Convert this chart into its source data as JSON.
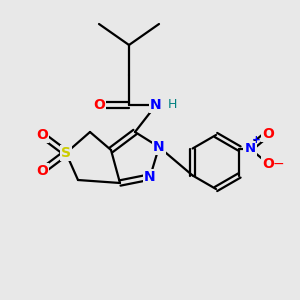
{
  "background_color": "#e8e8e8",
  "bond_color": "#000000",
  "atom_colors": {
    "O": "#ff0000",
    "N": "#0000ff",
    "S": "#cccc00",
    "H": "#008080",
    "C": "#000000"
  }
}
